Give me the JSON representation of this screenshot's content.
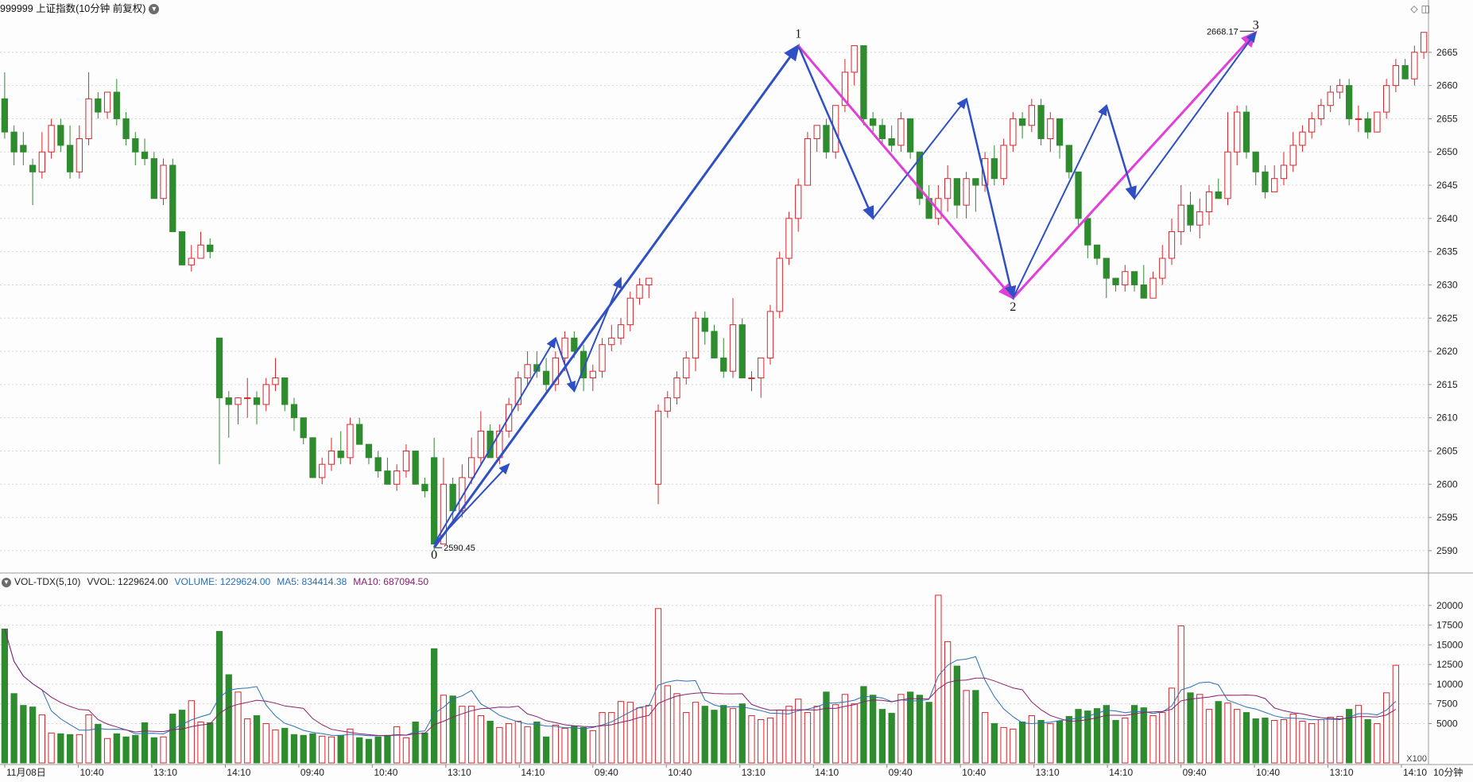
{
  "header": {
    "title": "999999 上证指数(10分钟 前复权)"
  },
  "volume_header": {
    "indicator": "VOL-TDX(5,10)",
    "vvol": "VVOL: 1229624.00",
    "volume": "VOLUME: 1229624.00",
    "ma5": "MA5: 834414.38",
    "ma10": "MA10: 687094.50"
  },
  "colors": {
    "up": "#d9262c",
    "down": "#2e8b2e",
    "ma5": "#2a6fb5",
    "ma10": "#8a1f6d",
    "wave_blue": "#2f4fc4",
    "wave_magenta": "#e03fd8"
  },
  "chart_data": [
    {
      "type": "candlestick",
      "ylim": [
        2587,
        2670
      ],
      "y_ticks": [
        2590,
        2595,
        2600,
        2605,
        2610,
        2615,
        2620,
        2625,
        2630,
        2635,
        2640,
        2645,
        2650,
        2655,
        2660,
        2665
      ],
      "x_tick_labels": [
        "11月08日",
        "10:40",
        "13:10",
        "14:10",
        "09:40",
        "10:40",
        "13:10",
        "14:10",
        "09:40",
        "10:40",
        "13:10",
        "14:10",
        "09:40",
        "10:40",
        "13:10",
        "14:10",
        "09:40",
        "10:40",
        "13:10",
        "14:10"
      ],
      "x_axis_unit": "10分钟",
      "low_label": "2590.45",
      "high_label": "2668.17",
      "wave_labels": [
        "0",
        "1",
        "2",
        "3"
      ],
      "candles": [
        [
          2658,
          2653,
          2662,
          2652
        ],
        [
          2653,
          2650,
          2654,
          2648
        ],
        [
          2651,
          2650,
          2653,
          2648
        ],
        [
          2648,
          2647,
          2649,
          2642
        ],
        [
          2647,
          2650,
          2653,
          2646
        ],
        [
          2650,
          2654,
          2655,
          2649
        ],
        [
          2654,
          2651,
          2655,
          2650
        ],
        [
          2651,
          2647,
          2654,
          2646
        ],
        [
          2647,
          2652,
          2654,
          2646
        ],
        [
          2652,
          2658,
          2662,
          2651
        ],
        [
          2658,
          2656,
          2659,
          2655
        ],
        [
          2656,
          2659,
          2659,
          2655
        ],
        [
          2659,
          2655,
          2661,
          2654
        ],
        [
          2655,
          2652,
          2656,
          2651
        ],
        [
          2652,
          2650,
          2653,
          2648
        ],
        [
          2650,
          2649,
          2652,
          2648
        ],
        [
          2649,
          2643,
          2650,
          2643
        ],
        [
          2643,
          2648,
          2649,
          2642
        ],
        [
          2648,
          2638,
          2649,
          2638
        ],
        [
          2638,
          2633,
          2638,
          2633
        ],
        [
          2633,
          2634,
          2636,
          2632
        ],
        [
          2634,
          2636,
          2638,
          2635
        ],
        [
          2636,
          2635,
          2637,
          2634
        ],
        [
          2622,
          2613,
          2622,
          2603
        ],
        [
          2613,
          2612,
          2614,
          2607
        ],
        [
          2612,
          2613,
          2613,
          2609
        ],
        [
          2613,
          2613,
          2616,
          2610
        ],
        [
          2613,
          2612,
          2614,
          2609
        ],
        [
          2612,
          2615,
          2616,
          2611
        ],
        [
          2615,
          2616,
          2619,
          2614
        ],
        [
          2616,
          2612,
          2616,
          2611
        ],
        [
          2612,
          2610,
          2613,
          2608
        ],
        [
          2610,
          2607,
          2610,
          2606
        ],
        [
          2607,
          2601,
          2607,
          2601
        ],
        [
          2601,
          2603,
          2604,
          2600
        ],
        [
          2603,
          2605,
          2607,
          2602
        ],
        [
          2605,
          2604,
          2608,
          2603
        ],
        [
          2604,
          2609,
          2610,
          2603
        ],
        [
          2609,
          2606,
          2610,
          2606
        ],
        [
          2606,
          2604,
          2606,
          2603
        ],
        [
          2604,
          2602,
          2605,
          2601
        ],
        [
          2602,
          2600,
          2604,
          2600
        ],
        [
          2600,
          2602,
          2603,
          2599
        ],
        [
          2602,
          2605,
          2606,
          2601
        ],
        [
          2605,
          2600,
          2605,
          2600
        ],
        [
          2600,
          2599,
          2601,
          2598
        ],
        [
          2604,
          2591,
          2607,
          2590
        ],
        [
          2591,
          2600,
          2604,
          2591
        ],
        [
          2600,
          2596,
          2601,
          2594
        ],
        [
          2596,
          2601,
          2603,
          2595
        ],
        [
          2601,
          2604,
          2607,
          2600
        ],
        [
          2604,
          2608,
          2611,
          2603
        ],
        [
          2608,
          2604,
          2609,
          2604
        ],
        [
          2604,
          2608,
          2609,
          2603
        ],
        [
          2608,
          2612,
          2613,
          2607
        ],
        [
          2612,
          2616,
          2617,
          2611
        ],
        [
          2616,
          2618,
          2620,
          2615
        ],
        [
          2618,
          2617,
          2620,
          2616
        ],
        [
          2617,
          2615,
          2619,
          2614
        ],
        [
          2615,
          2619,
          2620,
          2614
        ],
        [
          2619,
          2622,
          2623,
          2617
        ],
        [
          2622,
          2620,
          2623,
          2619
        ],
        [
          2620,
          2616,
          2621,
          2614
        ],
        [
          2616,
          2617,
          2618,
          2614
        ],
        [
          2617,
          2621,
          2622,
          2616
        ],
        [
          2621,
          2622,
          2624,
          2620
        ],
        [
          2622,
          2624,
          2625,
          2621
        ],
        [
          2624,
          2628,
          2629,
          2623
        ],
        [
          2628,
          2630,
          2631,
          2627
        ],
        [
          2630,
          2631,
          2631,
          2628
        ],
        [
          2600,
          2611,
          2612,
          2597
        ],
        [
          2611,
          2613,
          2614,
          2610
        ],
        [
          2613,
          2616,
          2617,
          2612
        ],
        [
          2616,
          2619,
          2620,
          2615
        ],
        [
          2619,
          2625,
          2626,
          2617
        ],
        [
          2625,
          2623,
          2626,
          2621
        ],
        [
          2623,
          2619,
          2624,
          2619
        ],
        [
          2619,
          2617,
          2622,
          2616
        ],
        [
          2617,
          2624,
          2628,
          2616
        ],
        [
          2624,
          2616,
          2625,
          2616
        ],
        [
          2616,
          2616,
          2617,
          2614
        ],
        [
          2616,
          2619,
          2619,
          2613
        ],
        [
          2619,
          2626,
          2627,
          2618
        ],
        [
          2626,
          2634,
          2635,
          2625
        ],
        [
          2634,
          2640,
          2641,
          2633
        ],
        [
          2640,
          2645,
          2646,
          2638
        ],
        [
          2645,
          2652,
          2653,
          2645
        ],
        [
          2652,
          2654,
          2654,
          2650
        ],
        [
          2654,
          2650,
          2655,
          2649
        ],
        [
          2650,
          2657,
          2657,
          2649
        ],
        [
          2657,
          2662,
          2664,
          2656
        ],
        [
          2662,
          2666,
          2666,
          2660
        ],
        [
          2666,
          2655,
          2666,
          2654
        ],
        [
          2655,
          2654,
          2656,
          2653
        ],
        [
          2654,
          2652,
          2655,
          2651
        ],
        [
          2652,
          2651,
          2654,
          2650
        ],
        [
          2651,
          2655,
          2656,
          2650
        ],
        [
          2655,
          2650,
          2655,
          2649
        ],
        [
          2650,
          2643,
          2650,
          2642
        ],
        [
          2643,
          2640,
          2645,
          2640
        ],
        [
          2640,
          2643,
          2645,
          2639
        ],
        [
          2643,
          2646,
          2648,
          2641
        ],
        [
          2646,
          2642,
          2646,
          2640
        ],
        [
          2642,
          2646,
          2647,
          2640
        ],
        [
          2646,
          2645,
          2646,
          2641
        ],
        [
          2645,
          2649,
          2650,
          2644
        ],
        [
          2649,
          2646,
          2651,
          2645
        ],
        [
          2646,
          2651,
          2652,
          2645
        ],
        [
          2651,
          2655,
          2656,
          2650
        ],
        [
          2655,
          2654,
          2656,
          2652
        ],
        [
          2654,
          2657,
          2658,
          2653
        ],
        [
          2657,
          2652,
          2658,
          2651
        ],
        [
          2652,
          2655,
          2656,
          2650
        ],
        [
          2655,
          2651,
          2655,
          2649
        ],
        [
          2651,
          2647,
          2651,
          2646
        ],
        [
          2647,
          2640,
          2647,
          2639
        ],
        [
          2640,
          2636,
          2640,
          2634
        ],
        [
          2636,
          2634,
          2636,
          2633
        ],
        [
          2634,
          2631,
          2634,
          2628
        ],
        [
          2631,
          2630,
          2631,
          2629
        ],
        [
          2630,
          2632,
          2633,
          2629
        ],
        [
          2632,
          2630,
          2632,
          2629
        ],
        [
          2630,
          2628,
          2633,
          2628
        ],
        [
          2628,
          2631,
          2632,
          2628
        ],
        [
          2631,
          2634,
          2636,
          2630
        ],
        [
          2634,
          2638,
          2640,
          2633
        ],
        [
          2638,
          2642,
          2645,
          2636
        ],
        [
          2642,
          2639,
          2644,
          2638
        ],
        [
          2639,
          2641,
          2643,
          2637
        ],
        [
          2641,
          2644,
          2645,
          2639
        ],
        [
          2644,
          2643,
          2646,
          2643
        ],
        [
          2643,
          2650,
          2656,
          2642
        ],
        [
          2650,
          2656,
          2657,
          2648
        ],
        [
          2656,
          2650,
          2657,
          2649
        ],
        [
          2650,
          2647,
          2650,
          2645
        ],
        [
          2647,
          2644,
          2648,
          2643
        ],
        [
          2644,
          2646,
          2648,
          2645
        ],
        [
          2646,
          2648,
          2650,
          2645
        ],
        [
          2648,
          2651,
          2653,
          2647
        ],
        [
          2651,
          2653,
          2654,
          2650
        ],
        [
          2653,
          2655,
          2656,
          2652
        ],
        [
          2655,
          2657,
          2658,
          2654
        ],
        [
          2657,
          2659,
          2660,
          2656
        ],
        [
          2659,
          2660,
          2661,
          2658
        ],
        [
          2660,
          2655,
          2661,
          2654
        ],
        [
          2655,
          2655,
          2657,
          2653
        ],
        [
          2655,
          2653,
          2656,
          2652
        ],
        [
          2653,
          2656,
          2656,
          2653
        ],
        [
          2656,
          2660,
          2661,
          2655
        ],
        [
          2660,
          2663,
          2664,
          2659
        ],
        [
          2663,
          2661,
          2664,
          2661
        ],
        [
          2661,
          2665,
          2666,
          2660
        ],
        [
          2665,
          2668,
          2668,
          2664
        ]
      ]
    },
    {
      "type": "bar",
      "ylim": [
        0,
        22000
      ],
      "y_ticks": [
        5000,
        7500,
        10000,
        12500,
        15000,
        17500,
        20000
      ],
      "scale_label": "X100",
      "series_ma": [
        "MA5",
        "MA10"
      ],
      "volumes": [
        17000,
        8800,
        7300,
        7100,
        6100,
        3800,
        3700,
        3600,
        3600,
        6100,
        4900,
        3100,
        3700,
        3300,
        3500,
        5100,
        3200,
        3300,
        6200,
        6700,
        7900,
        5200,
        5100,
        16700,
        11200,
        9000,
        5600,
        6000,
        5000,
        4200,
        4400,
        3600,
        3500,
        3700,
        3400,
        3300,
        3500,
        4300,
        3200,
        3000,
        3300,
        3500,
        4600,
        3200,
        5200,
        3800,
        14500,
        8600,
        8500,
        7200,
        7200,
        6000,
        5300,
        4500,
        5000,
        5300,
        4600,
        5200,
        3300,
        4800,
        4400,
        4700,
        4500,
        4100,
        6400,
        6400,
        7800,
        7700,
        7000,
        7300,
        19600,
        9800,
        8800,
        6400,
        7700,
        7200,
        6700,
        7300,
        6900,
        7500,
        6000,
        5500,
        5700,
        6700,
        7200,
        8100,
        6400,
        7200,
        9000,
        7400,
        8700,
        7500,
        9700,
        8600,
        6800,
        6300,
        8700,
        9000,
        8600,
        7700,
        21300,
        15400,
        12300,
        9200,
        9200,
        6400,
        5000,
        4500,
        4300,
        5200,
        6000,
        5400,
        5000,
        5300,
        5900,
        6800,
        6600,
        6900,
        7300,
        5400,
        5700,
        7300,
        7000,
        6000,
        6400,
        9500,
        17400,
        8900,
        8700,
        6800,
        7800,
        7600,
        6800,
        6400,
        5600,
        5700,
        5400,
        5500,
        6200,
        5300,
        5000,
        5500,
        5800,
        5900,
        6800,
        7300,
        5500,
        5000,
        8900,
        12400
      ]
    }
  ]
}
